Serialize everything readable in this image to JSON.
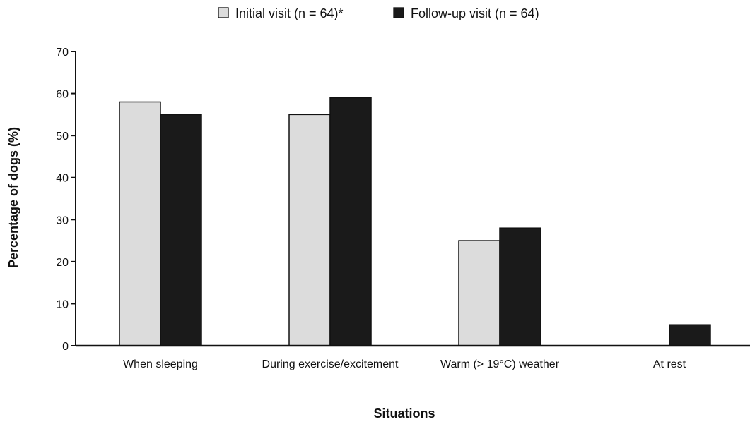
{
  "chart_data": {
    "type": "bar",
    "title": "",
    "xlabel": "Situations",
    "ylabel": "Percentage of dogs (%)",
    "ylim": [
      0,
      70
    ],
    "yticks": [
      0,
      10,
      20,
      30,
      40,
      50,
      60,
      70
    ],
    "grid": false,
    "legend_position": "top-center",
    "categories": [
      "When sleeping",
      "During exercise/excitement",
      "Warm (> 19°C) weather",
      "At rest"
    ],
    "series": [
      {
        "name": "Initial visit (n = 64)*",
        "color": "#dcdcdc",
        "values": [
          58,
          55,
          25,
          0
        ]
      },
      {
        "name": "Follow-up visit (n = 64)",
        "color": "#1a1a1a",
        "values": [
          55,
          59,
          28,
          5
        ]
      }
    ]
  }
}
